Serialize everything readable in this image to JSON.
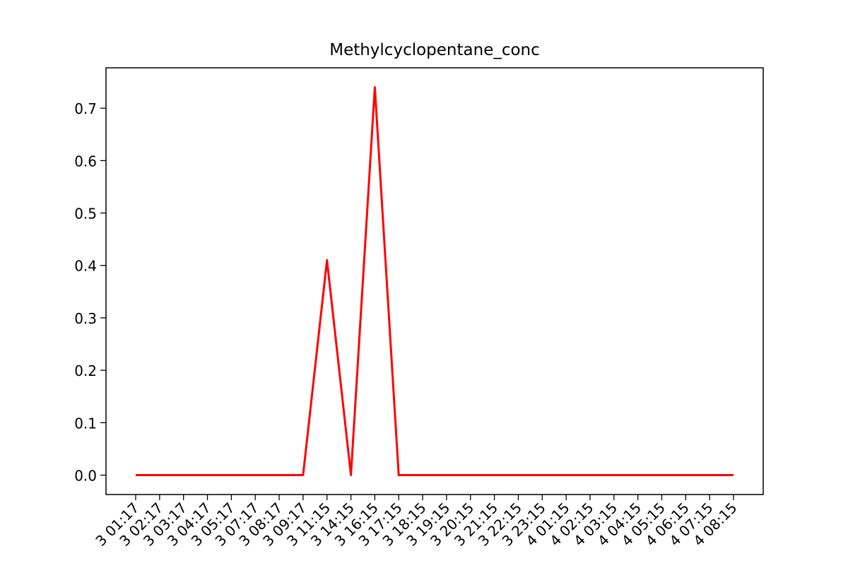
{
  "chart_data": {
    "type": "line",
    "title": "Methylcyclopentane_conc",
    "xlabel": "",
    "ylabel": "",
    "x": [
      "2023-..-13 01:17",
      "2023-..-13 02:17",
      "2023-..-13 03:17",
      "2023-..-13 04:17",
      "2023-..-13 05:17",
      "2023-..-13 07:17",
      "2023-..-13 08:17",
      "2023-..-13 09:17",
      "2023-..-13 11:15",
      "2023-..-13 14:15",
      "2023-..-13 16:15",
      "2023-..-13 17:15",
      "2023-..-13 18:15",
      "2023-..-13 19:15",
      "2023-..-13 20:15",
      "2023-..-13 21:15",
      "2023-..-13 22:15",
      "2023-..-13 23:15",
      "2023-..-14 01:15",
      "2023-..-14 02:15",
      "2023-..-14 03:15",
      "2023-..-14 04:15",
      "2023-..-14 05:15",
      "2023-..-14 06:15",
      "2023-..-14 07:15",
      "2023-..-14 08:15"
    ],
    "tick_labels": [
      "3 01:17",
      "3 02:17",
      "3 03:17",
      "3 04:17",
      "3 05:17",
      "3 07:17",
      "3 08:17",
      "3 09:17",
      "3 11:15",
      "3 14:15",
      "3 16:15",
      "3 17:15",
      "3 18:15",
      "3 19:15",
      "3 20:15",
      "3 21:15",
      "3 22:15",
      "3 23:15",
      "4 01:15",
      "4 02:15",
      "4 03:15",
      "4 04:15",
      "4 05:15",
      "4 06:15",
      "4 07:15",
      "4 08:15"
    ],
    "series": [
      {
        "color": "#ff0000",
        "values": [
          0,
          0,
          0,
          0,
          0,
          0,
          0,
          0,
          0.41,
          0,
          0.74,
          0,
          0,
          0,
          0,
          0,
          0,
          0,
          0,
          0,
          0,
          0,
          0,
          0,
          0,
          0
        ]
      }
    ],
    "yticks": [
      0.0,
      0.1,
      0.2,
      0.3,
      0.4,
      0.5,
      0.6,
      0.7
    ],
    "ytick_labels": [
      "0.0",
      "0.1",
      "0.2",
      "0.3",
      "0.4",
      "0.5",
      "0.6",
      "0.7"
    ],
    "ylim": [
      -0.037,
      0.777
    ],
    "grid": false,
    "legend": "none"
  }
}
